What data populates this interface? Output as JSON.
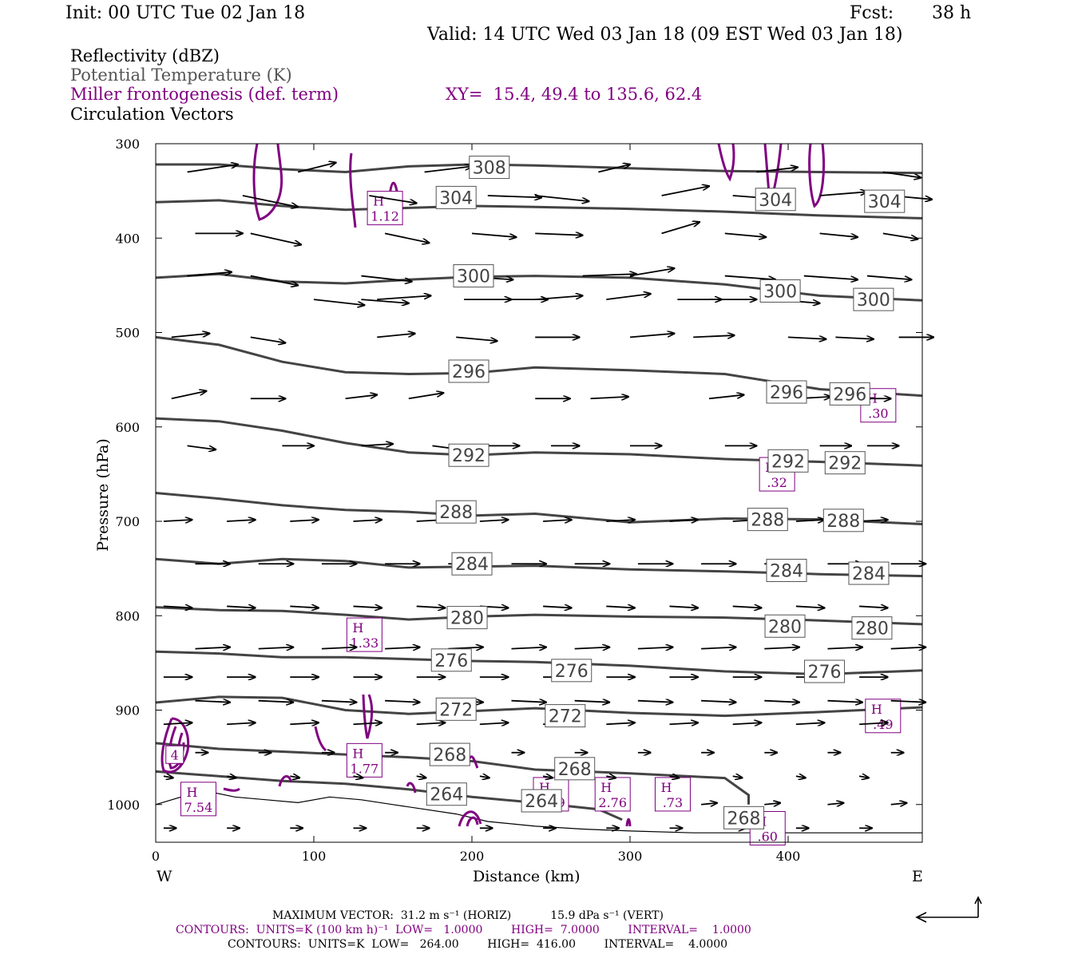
{
  "header": {
    "init": "Init: 00 UTC Tue 02 Jan 18",
    "fcst_label": "Fcst:",
    "fcst_value": "38 h",
    "valid": "Valid: 14 UTC Wed 03 Jan 18 (09 EST Wed 03 Jan 18)"
  },
  "legend": {
    "reflectivity": "Reflectivity (dBZ)",
    "theta": "Potential Temperature (K)",
    "frontogenesis": "Miller frontogenesis (def. term)",
    "xy": "XY=  15.4, 49.4 to 135.6, 62.4",
    "vectors": "Circulation Vectors"
  },
  "colors": {
    "theta": "#444444",
    "frontogenesis": "#800080",
    "vector": "#000000"
  },
  "chart_data": {
    "type": "line",
    "xlabel": "Distance (km)",
    "ylabel": "Pressure (hPa)",
    "xlim": [
      0,
      485
    ],
    "ylim": [
      1040,
      300
    ],
    "y_scale": "linear-inverted",
    "x_ticks": [
      "0",
      "100",
      "200",
      "300",
      "400"
    ],
    "y_ticks": [
      "300",
      "400",
      "500",
      "600",
      "700",
      "800",
      "900",
      "1000"
    ],
    "left_end_label": "W",
    "right_end_label": "E",
    "theta_contours": [
      {
        "name": "308",
        "points": [
          [
            0,
            322
          ],
          [
            40,
            322
          ],
          [
            80,
            327
          ],
          [
            120,
            330
          ],
          [
            160,
            324
          ],
          [
            200,
            322
          ],
          [
            240,
            323
          ],
          [
            300,
            326
          ],
          [
            360,
            329
          ],
          [
            420,
            330
          ],
          [
            485,
            331
          ]
        ],
        "labels": [
          [
            211,
            325
          ]
        ]
      },
      {
        "name": "304",
        "points": [
          [
            0,
            362
          ],
          [
            40,
            360
          ],
          [
            80,
            366
          ],
          [
            120,
            370
          ],
          [
            160,
            368
          ],
          [
            200,
            366
          ],
          [
            240,
            367
          ],
          [
            300,
            369
          ],
          [
            360,
            372
          ],
          [
            420,
            376
          ],
          [
            485,
            379
          ]
        ],
        "labels": [
          [
            190,
            357
          ],
          [
            392,
            359
          ],
          [
            461,
            361
          ]
        ]
      },
      {
        "name": "300",
        "points": [
          [
            0,
            442
          ],
          [
            40,
            438
          ],
          [
            80,
            446
          ],
          [
            120,
            448
          ],
          [
            160,
            444
          ],
          [
            200,
            441
          ],
          [
            240,
            440
          ],
          [
            300,
            442
          ],
          [
            360,
            449
          ],
          [
            420,
            461
          ],
          [
            485,
            466
          ]
        ],
        "labels": [
          [
            201,
            440
          ],
          [
            395,
            456
          ],
          [
            454,
            465
          ]
        ]
      },
      {
        "name": "296",
        "points": [
          [
            0,
            505
          ],
          [
            40,
            513
          ],
          [
            80,
            531
          ],
          [
            120,
            542
          ],
          [
            160,
            544
          ],
          [
            200,
            543
          ],
          [
            240,
            537
          ],
          [
            300,
            540
          ],
          [
            360,
            544
          ],
          [
            420,
            560
          ],
          [
            485,
            567
          ]
        ],
        "labels": [
          [
            198,
            541
          ],
          [
            399,
            563
          ],
          [
            439,
            565
          ]
        ]
      },
      {
        "name": "292",
        "points": [
          [
            0,
            591
          ],
          [
            40,
            594
          ],
          [
            80,
            604
          ],
          [
            120,
            617
          ],
          [
            160,
            627
          ],
          [
            200,
            630
          ],
          [
            240,
            627
          ],
          [
            300,
            629
          ],
          [
            360,
            634
          ],
          [
            420,
            637
          ],
          [
            485,
            641
          ]
        ],
        "labels": [
          [
            198,
            630
          ],
          [
            400,
            636
          ],
          [
            436,
            638
          ]
        ]
      },
      {
        "name": "288",
        "points": [
          [
            0,
            670
          ],
          [
            40,
            676
          ],
          [
            80,
            683
          ],
          [
            120,
            688
          ],
          [
            160,
            690
          ],
          [
            200,
            694
          ],
          [
            240,
            692
          ],
          [
            300,
            701
          ],
          [
            360,
            697
          ],
          [
            420,
            698
          ],
          [
            485,
            703
          ]
        ],
        "labels": [
          [
            190,
            690
          ],
          [
            387,
            698
          ],
          [
            435,
            699
          ]
        ]
      },
      {
        "name": "284",
        "points": [
          [
            0,
            740
          ],
          [
            40,
            745
          ],
          [
            80,
            740
          ],
          [
            120,
            742
          ],
          [
            160,
            749
          ],
          [
            200,
            748
          ],
          [
            240,
            747
          ],
          [
            300,
            751
          ],
          [
            360,
            753
          ],
          [
            420,
            756
          ],
          [
            485,
            758
          ]
        ],
        "labels": [
          [
            200,
            745
          ],
          [
            399,
            752
          ],
          [
            451,
            755
          ]
        ]
      },
      {
        "name": "280",
        "points": [
          [
            0,
            791
          ],
          [
            40,
            794
          ],
          [
            80,
            795
          ],
          [
            120,
            799
          ],
          [
            160,
            804
          ],
          [
            200,
            801
          ],
          [
            240,
            799
          ],
          [
            300,
            801
          ],
          [
            360,
            802
          ],
          [
            420,
            805
          ],
          [
            485,
            809
          ]
        ],
        "labels": [
          [
            197,
            802
          ],
          [
            398,
            811
          ],
          [
            453,
            813
          ]
        ]
      },
      {
        "name": "276",
        "points": [
          [
            0,
            838
          ],
          [
            40,
            840
          ],
          [
            80,
            844
          ],
          [
            120,
            844
          ],
          [
            160,
            846
          ],
          [
            200,
            848
          ],
          [
            240,
            849
          ],
          [
            300,
            853
          ],
          [
            360,
            859
          ],
          [
            420,
            862
          ],
          [
            485,
            858
          ]
        ],
        "labels": [
          [
            187,
            847
          ],
          [
            263,
            858
          ],
          [
            423,
            859
          ]
        ]
      },
      {
        "name": "272",
        "points": [
          [
            0,
            892
          ],
          [
            40,
            886
          ],
          [
            80,
            887
          ],
          [
            120,
            900
          ],
          [
            160,
            904
          ],
          [
            200,
            901
          ],
          [
            240,
            898
          ],
          [
            300,
            903
          ],
          [
            360,
            906
          ],
          [
            420,
            902
          ],
          [
            485,
            897
          ]
        ],
        "labels": [
          [
            190,
            899
          ],
          [
            259,
            906
          ]
        ]
      },
      {
        "name": "268",
        "points": [
          [
            0,
            935
          ],
          [
            40,
            941
          ],
          [
            80,
            944
          ],
          [
            120,
            947
          ],
          [
            160,
            950
          ],
          [
            200,
            954
          ],
          [
            240,
            963
          ],
          [
            300,
            967
          ],
          [
            360,
            972
          ],
          [
            375,
            990
          ],
          [
            375,
            1000
          ]
        ],
        "labels": [
          [
            186,
            947
          ],
          [
            265,
            962
          ],
          [
            372,
            1014
          ]
        ]
      },
      {
        "name": "264",
        "points": [
          [
            0,
            965
          ],
          [
            40,
            970
          ],
          [
            80,
            975
          ],
          [
            120,
            978
          ],
          [
            160,
            984
          ],
          [
            200,
            992
          ],
          [
            240,
            998
          ],
          [
            280,
            1005
          ],
          [
            295,
            1016
          ]
        ],
        "labels": [
          [
            184,
            989
          ],
          [
            244,
            996
          ]
        ]
      }
    ],
    "frontogenesis_maxima": [
      {
        "label": "H",
        "value": "1.12",
        "x": 145,
        "y": 369
      },
      {
        "label": "H",
        "value": ".30",
        "x": 457,
        "y": 578
      },
      {
        "label": "H",
        "value": ".32",
        "x": 393,
        "y": 651
      },
      {
        "label": "H",
        "value": "1.33",
        "x": 132,
        "y": 821
      },
      {
        "label": "H",
        "value": "1.77",
        "x": 132,
        "y": 954
      },
      {
        "label": "H",
        "value": ".49",
        "x": 460,
        "y": 907
      },
      {
        "label": "H",
        "value": "1.09",
        "x": 250,
        "y": 990
      },
      {
        "label": "H",
        "value": "2.76",
        "x": 289,
        "y": 990
      },
      {
        "label": "H",
        "value": ".73",
        "x": 327,
        "y": 990
      },
      {
        "label": "H",
        "value": ".60",
        "x": 387,
        "y": 1026
      },
      {
        "label": "H",
        "value": "7.54",
        "x": 27,
        "y": 995
      }
    ],
    "frontogenesis_label_4": {
      "value": "4",
      "x": 12,
      "y": 948
    },
    "vector_rows": [
      {
        "p": 330,
        "x": [
          20,
          90,
          170,
          280,
          380,
          460
        ],
        "dx": [
          32,
          24,
          30,
          20,
          26,
          24
        ],
        "dp": [
          -8,
          -10,
          -6,
          -8,
          -5,
          6
        ]
      },
      {
        "p": 355,
        "x": [
          55,
          135,
          210,
          240,
          320,
          365,
          420,
          465
        ],
        "dx": [
          35,
          30,
          34,
          34,
          30,
          32,
          30,
          26
        ],
        "dp": [
          12,
          8,
          2,
          6,
          -10,
          4,
          -4,
          4
        ]
      },
      {
        "p": 395,
        "x": [
          25,
          60,
          145,
          200,
          240,
          320,
          360,
          420,
          460
        ],
        "dx": [
          30,
          32,
          28,
          28,
          30,
          24,
          26,
          24,
          22
        ],
        "dp": [
          0,
          12,
          10,
          4,
          2,
          -12,
          4,
          4,
          6
        ]
      },
      {
        "p": 440,
        "x": [
          20,
          60,
          130,
          190,
          270,
          300,
          360,
          410,
          450
        ],
        "dx": [
          28,
          30,
          32,
          36,
          34,
          28,
          32,
          34,
          28
        ],
        "dp": [
          -4,
          10,
          6,
          4,
          -2,
          -8,
          4,
          4,
          4
        ]
      },
      {
        "p": 465,
        "x": [
          100,
          130,
          140,
          195,
          220,
          240,
          285,
          330,
          350,
          390
        ],
        "dx": [
          32,
          30,
          34,
          30,
          28,
          30,
          28,
          28,
          30,
          30
        ],
        "dp": [
          6,
          4,
          -4,
          0,
          0,
          -4,
          -6,
          0,
          0,
          4
        ]
      },
      {
        "p": 505,
        "x": [
          10,
          60,
          140,
          190,
          240,
          300,
          340,
          400,
          430,
          470
        ],
        "dx": [
          24,
          22,
          24,
          26,
          28,
          28,
          26,
          24,
          24,
          22
        ],
        "dp": [
          -4,
          6,
          -4,
          4,
          0,
          -4,
          -2,
          2,
          2,
          0
        ]
      },
      {
        "p": 570,
        "x": [
          10,
          60,
          120,
          160,
          240,
          275,
          350,
          405,
          430,
          445
        ],
        "dx": [
          22,
          22,
          20,
          22,
          22,
          24,
          22,
          22,
          22,
          20
        ],
        "dp": [
          -8,
          0,
          -4,
          -6,
          0,
          -2,
          -4,
          -2,
          0,
          0
        ]
      },
      {
        "p": 620,
        "x": [
          20,
          80,
          130,
          175,
          210,
          250,
          300,
          360,
          420,
          450
        ],
        "dx": [
          18,
          20,
          20,
          18,
          20,
          18,
          20,
          20,
          20,
          20
        ],
        "dp": [
          4,
          0,
          -2,
          4,
          0,
          0,
          0,
          0,
          0,
          0
        ]
      }
    ],
    "max_vector": "MAXIMUM VECTOR:  31.2 m s⁻¹ (HORIZ)           15.9 dPa s⁻¹ (VERT)",
    "contours_purple": "CONTOURS:  UNITS=K (100 km h)⁻¹  LOW=   1.0000        HIGH=  7.0000        INTERVAL=    1.0000",
    "contours_black": "CONTOURS:  UNITS=K  LOW=   264.00        HIGH=  416.00        INTERVAL=    4.0000"
  }
}
